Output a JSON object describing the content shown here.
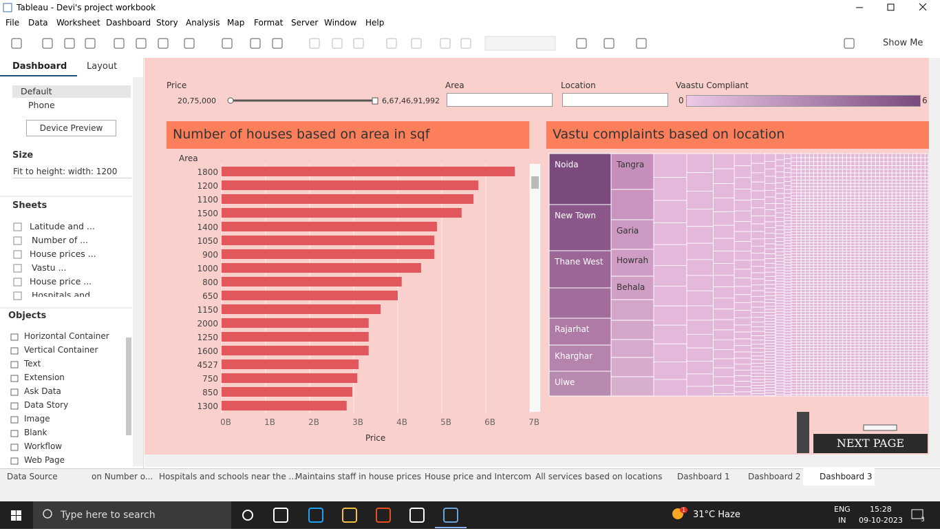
{
  "window": {
    "title": "Tableau - Devi's project workbook"
  },
  "menu": [
    "File",
    "Data",
    "Worksheet",
    "Dashboard",
    "Story",
    "Analysis",
    "Map",
    "Format",
    "Server",
    "Window",
    "Help"
  ],
  "toolbar": {
    "show_me": "Show Me"
  },
  "side_panel": {
    "tabs": [
      "Dashboard",
      "Layout"
    ],
    "devices": [
      "Default",
      "Phone"
    ],
    "device_preview": "Device Preview",
    "size_title": "Size",
    "size_value": "Fit to height: width: 1200",
    "sheets_title": "Sheets",
    "sheets": [
      "Latitude and ...",
      "Number of ...",
      "House prices ...",
      "Vastu ...",
      "House price ...",
      "Hospitals and"
    ],
    "objects_title": "Objects",
    "objects": [
      "Horizontal Container",
      "Vertical Container",
      "Text",
      "Extension",
      "Ask Data",
      "Data Story",
      "Image",
      "Blank",
      "Workflow",
      "Web Page"
    ]
  },
  "filters": {
    "price": {
      "label": "Price",
      "min": "20,75,000",
      "max": "6,67,46,91,992"
    },
    "area": {
      "label": "Area"
    },
    "location": {
      "label": "Location"
    },
    "vastu": {
      "label": "Vaastu Compliant",
      "min": "0",
      "max": "6"
    }
  },
  "chart_data": {
    "type": "bar",
    "title": "Number of houses based on area in sqf",
    "y_label": "Area",
    "x_label": "Price",
    "color": "#e1575c",
    "categories": [
      "1800",
      "1200",
      "1100",
      "1500",
      "1400",
      "1050",
      "900",
      "1000",
      "800",
      "650",
      "1150",
      "2000",
      "1250",
      "1600",
      "4527",
      "750",
      "850",
      "1300"
    ],
    "values": [
      6.66,
      5.83,
      5.72,
      5.45,
      4.89,
      4.83,
      4.83,
      4.53,
      4.09,
      4.0,
      3.61,
      3.34,
      3.34,
      3.34,
      3.11,
      3.08,
      2.97,
      2.84
    ],
    "xlim": [
      0,
      7
    ],
    "xticks": [
      {
        "value": 0,
        "label": "0B"
      },
      {
        "value": 1,
        "label": "1B"
      },
      {
        "value": 2,
        "label": "2B"
      },
      {
        "value": 3,
        "label": "3B"
      },
      {
        "value": 4,
        "label": "4B"
      },
      {
        "value": 5,
        "label": "5B"
      },
      {
        "value": 6,
        "label": "6B"
      },
      {
        "value": 7,
        "label": "7B"
      }
    ],
    "grid": true
  },
  "treemap": {
    "title": "Vastu complaints based on location",
    "labels": [
      "Noida",
      "New Town",
      "Thane West",
      "Rajarhat",
      "Kharghar",
      "Ulwe",
      "Tangra",
      "Garia",
      "Howrah",
      "Behala"
    ]
  },
  "next_page": "NEXT PAGE",
  "tabs": [
    "Data Source",
    "on Number o...",
    "Hospitals and schools near the ...",
    "Maintains staff in house prices",
    "House price and Intercom",
    "All services based on locations",
    "Dashboard 1",
    "Dashboard 2",
    "Dashboard 3"
  ],
  "taskbar": {
    "search": "Type here to search",
    "weather": "31°C  Haze",
    "lang": "ENG",
    "region": "IN",
    "time": "15:28",
    "date": "09-10-2023",
    "notifications": "3",
    "badge": "1"
  }
}
